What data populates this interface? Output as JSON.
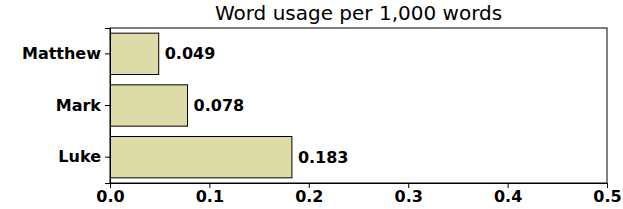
{
  "chart_data": {
    "type": "bar",
    "title": "Word usage per 1,000 words",
    "orientation": "horizontal",
    "categories": [
      "Matthew",
      "Mark",
      "Luke"
    ],
    "values": [
      0.049,
      0.078,
      0.183
    ],
    "color": "#dddca8",
    "xlim": [
      0,
      0.5
    ],
    "xticks": [
      {
        "value": 0,
        "label": "0.0"
      },
      0.1,
      0.2,
      0.3,
      0.4,
      0.5
    ],
    "grid": false,
    "data_labels": true
  }
}
